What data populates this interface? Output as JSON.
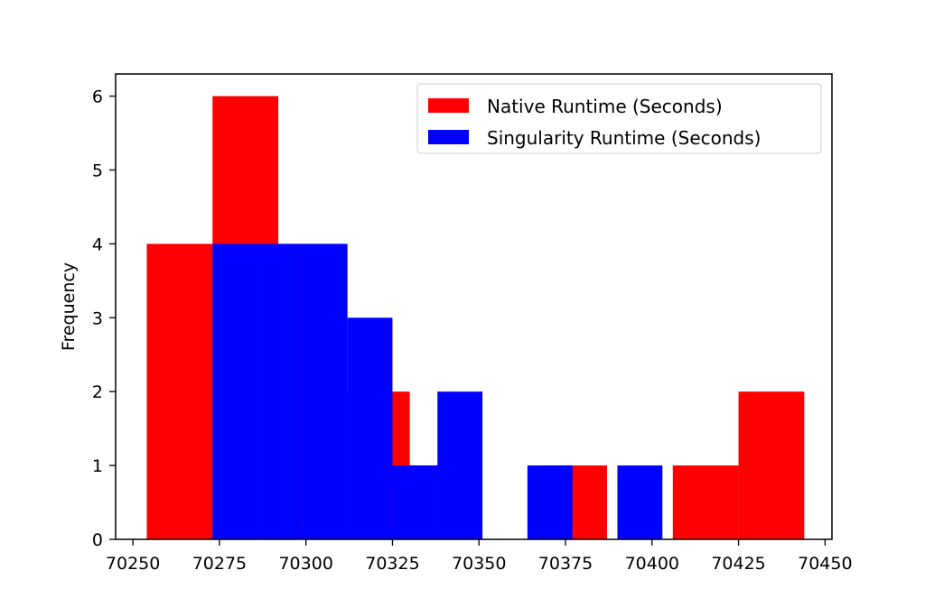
{
  "chart_data": {
    "type": "bar",
    "title": "",
    "xlabel": "",
    "ylabel": "Frequency",
    "xlim": [
      70245,
      70452
    ],
    "ylim": [
      0,
      6.3
    ],
    "xticks": [
      70250,
      70275,
      70300,
      70325,
      70350,
      70375,
      70400,
      70425,
      70450
    ],
    "yticks": [
      0,
      1,
      2,
      3,
      4,
      5,
      6
    ],
    "grid": false,
    "legend_position": "top-right",
    "series": [
      {
        "name": "Native Runtime (Seconds)",
        "color": "#ff0000",
        "bins": [
          {
            "x0": 70254.0,
            "x1": 70273.0,
            "count": 4
          },
          {
            "x0": 70273.0,
            "x1": 70292.0,
            "count": 6
          },
          {
            "x0": 70292.0,
            "x1": 70311.0,
            "count": 4
          },
          {
            "x0": 70311.0,
            "x1": 70330.0,
            "count": 2
          },
          {
            "x0": 70330.0,
            "x1": 70349.0,
            "count": 1
          },
          {
            "x0": 70349.0,
            "x1": 70368.0,
            "count": 0
          },
          {
            "x0": 70368.0,
            "x1": 70387.0,
            "count": 1
          },
          {
            "x0": 70387.0,
            "x1": 70406.0,
            "count": 0
          },
          {
            "x0": 70406.0,
            "x1": 70425.0,
            "count": 1
          },
          {
            "x0": 70425.0,
            "x1": 70444.0,
            "count": 2
          }
        ]
      },
      {
        "name": "Singularity Runtime (Seconds)",
        "color": "#0000ff",
        "bins": [
          {
            "x0": 70273.0,
            "x1": 70286.0,
            "count": 4
          },
          {
            "x0": 70286.0,
            "x1": 70299.0,
            "count": 4
          },
          {
            "x0": 70299.0,
            "x1": 70312.0,
            "count": 4
          },
          {
            "x0": 70312.0,
            "x1": 70325.0,
            "count": 3
          },
          {
            "x0": 70325.0,
            "x1": 70338.0,
            "count": 1
          },
          {
            "x0": 70338.0,
            "x1": 70351.0,
            "count": 2
          },
          {
            "x0": 70351.0,
            "x1": 70364.0,
            "count": 0
          },
          {
            "x0": 70364.0,
            "x1": 70377.0,
            "count": 1
          },
          {
            "x0": 70377.0,
            "x1": 70390.0,
            "count": 0
          },
          {
            "x0": 70390.0,
            "x1": 70403.0,
            "count": 1
          }
        ]
      }
    ]
  }
}
